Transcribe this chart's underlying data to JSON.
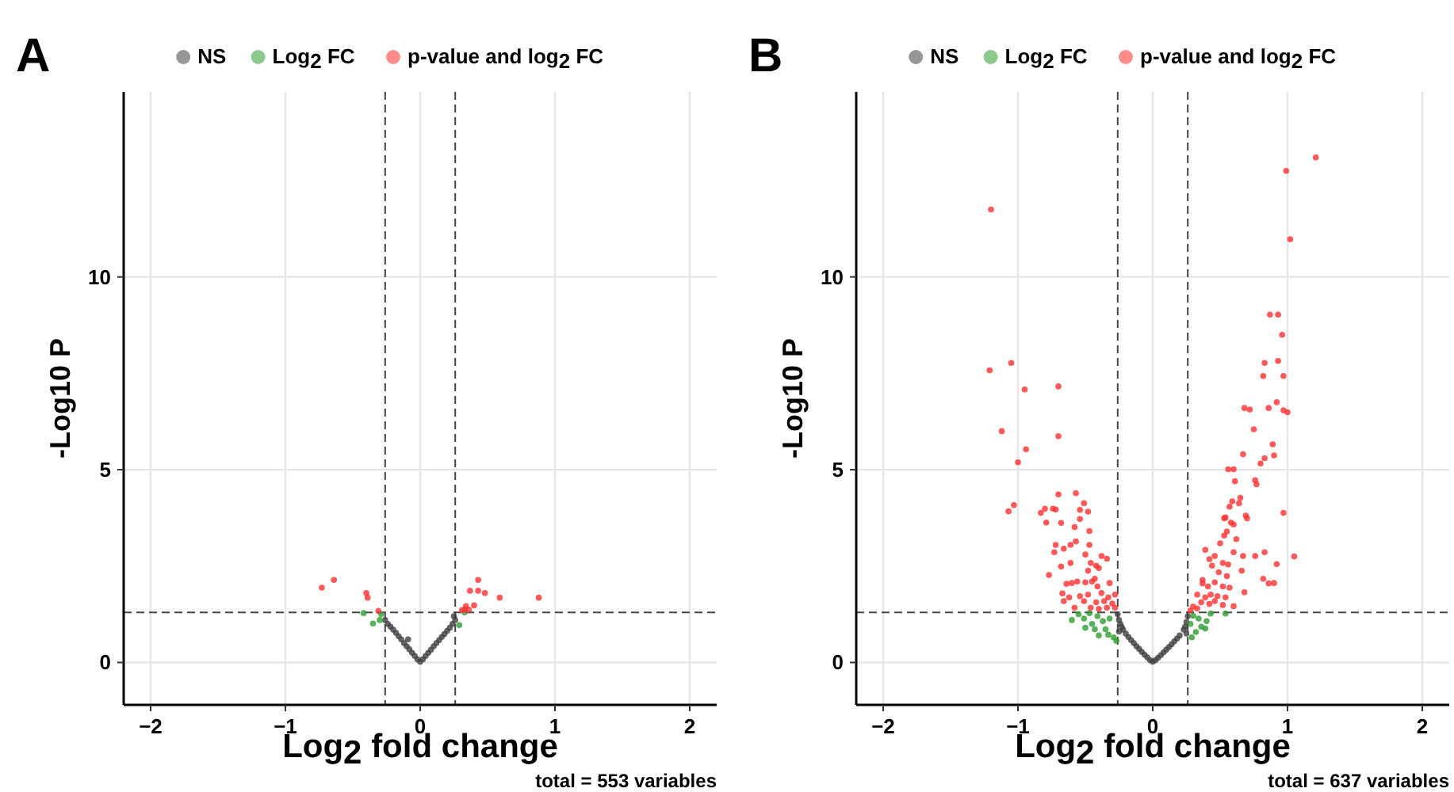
{
  "chart_data": [
    {
      "type": "scatter",
      "title": "A",
      "xlabel": "Log$_{2}$ fold change",
      "ylabel": "-Log10 P",
      "annotations": [
        "total = 553 variables"
      ],
      "xlim": [
        -2.2,
        2.2
      ],
      "ylim": [
        -1.1,
        14.8
      ],
      "xticks": [
        -2,
        -1,
        0,
        1,
        2
      ],
      "yticks": [
        0,
        5,
        10
      ],
      "grid": true,
      "legend": "top",
      "marker": "circle",
      "ref_lines": [
        {
          "axis": "x",
          "value": -0.26,
          "line_style": "dashed"
        },
        {
          "axis": "x",
          "value": 0.26,
          "line_style": "dashed"
        },
        {
          "axis": "y",
          "value": 1.3,
          "line_style": "dashed"
        }
      ],
      "series": [
        {
          "name": "NS",
          "color": "#3f3f3f",
          "x": [
            -0.26,
            -0.24,
            -0.22,
            -0.2,
            -0.18,
            -0.16,
            -0.14,
            -0.12,
            -0.1,
            -0.08,
            -0.06,
            -0.04,
            -0.02,
            0,
            0.02,
            0.04,
            0.06,
            0.08,
            0.1,
            0.12,
            0.14,
            0.16,
            0.18,
            0.2,
            0.22,
            0.24,
            0.26,
            0.25,
            -0.09
          ],
          "values": [
            1.1,
            1.0,
            0.93,
            0.85,
            0.77,
            0.68,
            0.6,
            0.5,
            0.42,
            0.34,
            0.25,
            0.17,
            0.08,
            0.02,
            0.08,
            0.17,
            0.25,
            0.33,
            0.42,
            0.5,
            0.58,
            0.66,
            0.74,
            0.82,
            0.9,
            1.0,
            1.1,
            1.2,
            0.6
          ]
        },
        {
          "name": "Log$_{2}$ FC",
          "color": "#2e9e2e",
          "x": [
            -0.42,
            -0.35,
            -0.3,
            -0.29,
            0.29,
            0.33
          ],
          "values": [
            1.28,
            1.01,
            1.1,
            1.25,
            0.97,
            1.3
          ]
        },
        {
          "name": "p-value and log$_{2}$ FC",
          "color": "#ff3030",
          "x": [
            -0.73,
            -0.64,
            -0.4,
            -0.39,
            -0.31,
            0.43,
            0.37,
            0.43,
            0.48,
            0.59,
            0.88,
            0.34,
            0.4,
            0.36,
            0.33,
            0.31
          ],
          "values": [
            1.94,
            2.14,
            1.8,
            1.68,
            1.34,
            2.14,
            1.86,
            1.86,
            1.8,
            1.68,
            1.68,
            1.46,
            1.48,
            1.37,
            1.37,
            1.36
          ]
        }
      ]
    },
    {
      "type": "scatter",
      "title": "B",
      "xlabel": "Log$_{2}$ fold change",
      "ylabel": "-Log10 P",
      "annotations": [
        "total = 637 variables"
      ],
      "xlim": [
        -2.2,
        2.2
      ],
      "ylim": [
        -1.1,
        14.8
      ],
      "xticks": [
        -2,
        -1,
        0,
        1,
        2
      ],
      "yticks": [
        0,
        5,
        10
      ],
      "grid": true,
      "legend": "top",
      "marker": "circle",
      "ref_lines": [
        {
          "axis": "x",
          "value": -0.26,
          "line_style": "dashed"
        },
        {
          "axis": "x",
          "value": 0.26,
          "line_style": "dashed"
        },
        {
          "axis": "y",
          "value": 1.3,
          "line_style": "dashed"
        }
      ],
      "series": [
        {
          "name": "NS",
          "color": "#3f3f3f",
          "x": [
            -0.26,
            -0.25,
            -0.24,
            -0.23,
            -0.22,
            -0.2,
            -0.18,
            -0.16,
            -0.14,
            -0.12,
            -0.1,
            -0.08,
            -0.06,
            -0.04,
            -0.02,
            0,
            0.02,
            0.04,
            0.06,
            0.08,
            0.1,
            0.12,
            0.14,
            0.16,
            0.18,
            0.2,
            0.23,
            0.24,
            0.25,
            0.26,
            -0.25,
            0.25
          ],
          "values": [
            1.25,
            1.1,
            1.0,
            0.92,
            0.85,
            0.75,
            0.66,
            0.58,
            0.5,
            0.42,
            0.35,
            0.27,
            0.2,
            0.13,
            0.06,
            0.02,
            0.06,
            0.12,
            0.19,
            0.26,
            0.33,
            0.4,
            0.47,
            0.55,
            0.62,
            0.7,
            0.85,
            0.93,
            1.05,
            1.2,
            0.8,
            0.75
          ]
        },
        {
          "name": "Log$_{2}$ FC",
          "color": "#2e9e2e",
          "x": [
            -0.55,
            -0.51,
            -0.45,
            -0.41,
            -0.35,
            -0.33,
            -0.29,
            -0.27,
            -0.43,
            -0.37,
            -0.32,
            -0.47,
            -0.6,
            -0.5,
            -0.4,
            0.3,
            0.34,
            0.4,
            0.43,
            0.36,
            0.32,
            0.29,
            0.39,
            0.54,
            0.28
          ],
          "values": [
            1.25,
            1.14,
            1.0,
            1.2,
            0.86,
            0.72,
            0.65,
            0.56,
            0.86,
            1.07,
            1.14,
            1.28,
            1.1,
            0.9,
            0.7,
            1.21,
            1.14,
            1.07,
            1.27,
            0.93,
            0.79,
            0.65,
            0.88,
            1.27,
            1.0
          ]
        },
        {
          "name": "p-value and log$_{2}$ FC",
          "color": "#ff3030",
          "x": [
            -1.2,
            -1.05,
            -1.21,
            -0.95,
            -0.7,
            -1.12,
            -0.7,
            -0.94,
            -1.0,
            -1.03,
            -1.07,
            -0.7,
            -0.57,
            -0.51,
            -0.8,
            -0.74,
            -0.83,
            -0.72,
            -0.54,
            -0.48,
            -0.79,
            -0.68,
            -0.54,
            -0.58,
            -0.47,
            -0.72,
            -0.66,
            -0.61,
            -0.57,
            -0.73,
            -0.5,
            -0.47,
            -0.38,
            -0.34,
            -0.68,
            -0.61,
            -0.46,
            -0.42,
            -0.48,
            -0.4,
            -0.77,
            -0.43,
            -0.45,
            -0.64,
            -0.6,
            -0.56,
            -0.5,
            -0.32,
            -0.41,
            -0.67,
            -0.62,
            -0.54,
            -0.48,
            -0.38,
            -0.33,
            -0.28,
            -0.66,
            -0.51,
            -0.42,
            -0.36,
            -0.3,
            -0.58,
            -0.46,
            -0.4,
            -0.34,
            -0.28,
            1.21,
            0.99,
            1.02,
            0.87,
            0.93,
            0.96,
            0.83,
            0.93,
            0.82,
            0.97,
            0.68,
            0.72,
            0.86,
            0.92,
            0.97,
            1.0,
            0.75,
            0.89,
            0.83,
            0.9,
            0.8,
            0.67,
            0.56,
            0.6,
            0.61,
            0.76,
            0.77,
            0.65,
            0.59,
            0.64,
            0.57,
            0.69,
            0.7,
            0.53,
            0.54,
            0.58,
            0.6,
            0.97,
            0.53,
            0.55,
            0.62,
            0.5,
            0.39,
            0.6,
            0.67,
            0.76,
            0.83,
            1.05,
            0.42,
            0.46,
            0.52,
            0.56,
            0.92,
            0.44,
            0.49,
            0.55,
            0.66,
            0.82,
            0.86,
            0.9,
            0.37,
            0.37,
            0.41,
            0.46,
            0.52,
            0.57,
            0.68,
            0.33,
            0.39,
            0.43,
            0.48,
            0.54,
            0.36,
            0.42,
            0.46,
            0.52,
            0.6,
            0.3,
            0.33,
            0.28
          ],
          "values": [
            11.75,
            7.77,
            7.58,
            7.08,
            7.16,
            6.0,
            5.87,
            5.53,
            5.19,
            4.08,
            3.92,
            4.36,
            4.39,
            4.13,
            3.99,
            3.99,
            3.88,
            3.97,
            3.96,
            3.91,
            3.63,
            3.62,
            3.72,
            3.51,
            3.41,
            3.05,
            2.95,
            3.05,
            3.14,
            2.86,
            2.8,
            3.05,
            2.76,
            2.69,
            2.49,
            2.58,
            2.58,
            2.51,
            2.38,
            2.45,
            2.27,
            2.17,
            2.1,
            2.04,
            2.06,
            2.1,
            2.08,
            2.06,
            1.97,
            1.79,
            1.69,
            1.72,
            1.76,
            1.8,
            1.69,
            1.76,
            1.59,
            1.59,
            1.56,
            1.59,
            1.53,
            1.42,
            1.42,
            1.39,
            1.42,
            1.42,
            13.1,
            12.75,
            10.98,
            9.02,
            9.02,
            8.5,
            7.77,
            7.82,
            7.43,
            7.43,
            6.6,
            6.56,
            6.6,
            6.75,
            6.54,
            6.49,
            6.05,
            5.66,
            5.3,
            5.37,
            5.16,
            5.4,
            5.01,
            5.01,
            4.7,
            4.73,
            4.62,
            4.27,
            4.18,
            4.13,
            4.04,
            3.81,
            3.74,
            3.74,
            3.76,
            3.63,
            3.58,
            3.88,
            3.29,
            3.4,
            3.2,
            3.09,
            2.92,
            2.86,
            2.76,
            2.76,
            2.86,
            2.75,
            2.68,
            2.76,
            2.58,
            2.54,
            2.55,
            2.51,
            2.34,
            2.24,
            2.38,
            2.17,
            2.05,
            2.06,
            2.14,
            2.05,
            1.97,
            2.08,
            1.97,
            1.94,
            1.82,
            1.76,
            1.69,
            1.76,
            1.72,
            1.69,
            1.56,
            1.52,
            1.59,
            1.49,
            1.46,
            1.45,
            1.4,
            1.35
          ]
        }
      ]
    }
  ]
}
